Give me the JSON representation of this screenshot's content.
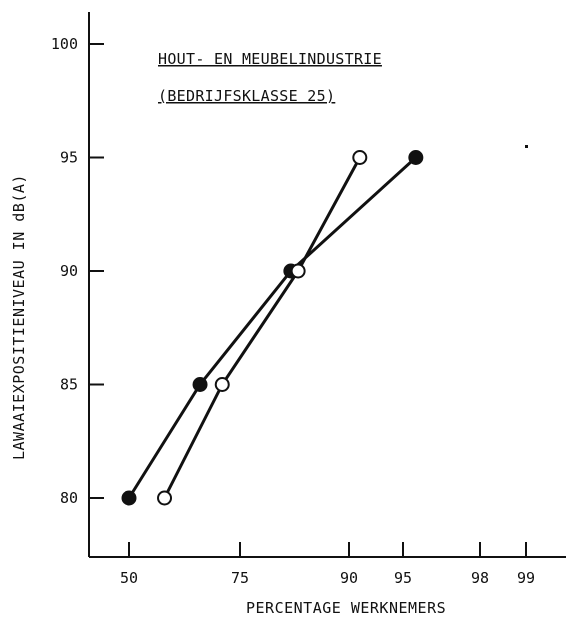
{
  "chart_data": {
    "type": "line",
    "title": [
      "HOUT- EN MEUBELINDUSTRIE",
      "(BEDRIJFSKLASSE 25)"
    ],
    "xlabel": "PERCENTAGE WERKNEMERS",
    "ylabel": "LAWAAIEXPOSITIENIVEAU IN dB(A)",
    "x_scale": "probability",
    "x_ticks": [
      50,
      75,
      90,
      95,
      98,
      99
    ],
    "y_ticks": [
      80,
      85,
      90,
      95,
      100
    ],
    "ylim": [
      78,
      102
    ],
    "grid": false,
    "series": [
      {
        "marker": "filled-circle",
        "color": "#111111",
        "x": [
          50,
          66,
          82,
          95.5
        ],
        "y": [
          80,
          85,
          90,
          95
        ]
      },
      {
        "marker": "open-circle",
        "color": "#111111",
        "x": [
          58,
          71,
          83,
          91
        ],
        "y": [
          80,
          85,
          90,
          95
        ]
      }
    ]
  }
}
